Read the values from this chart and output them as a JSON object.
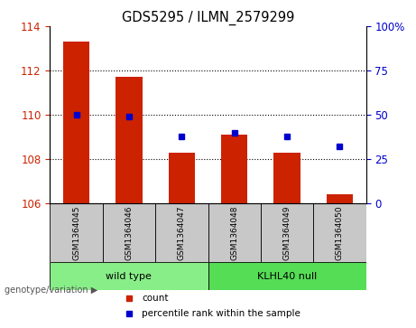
{
  "title": "GDS5295 / ILMN_2579299",
  "samples": [
    "GSM1364045",
    "GSM1364046",
    "GSM1364047",
    "GSM1364048",
    "GSM1364049",
    "GSM1364050"
  ],
  "counts": [
    113.3,
    111.7,
    108.3,
    109.1,
    108.3,
    106.4
  ],
  "percentile_ranks": [
    50,
    49,
    38,
    40,
    38,
    32
  ],
  "ylim_left": [
    106,
    114
  ],
  "yticks_left": [
    106,
    108,
    110,
    112,
    114
  ],
  "ylim_right": [
    0,
    100
  ],
  "yticks_right": [
    0,
    25,
    50,
    75,
    100
  ],
  "ytick_labels_right": [
    "0",
    "25",
    "50",
    "75",
    "100%"
  ],
  "bar_color": "#CC2200",
  "dot_color": "#0000CC",
  "bar_bottom": 106,
  "groups": [
    {
      "label": "wild type",
      "indices": [
        0,
        1,
        2
      ],
      "color": "#88EE88"
    },
    {
      "label": "KLHL40 null",
      "indices": [
        3,
        4,
        5
      ],
      "color": "#55DD55"
    }
  ],
  "genotype_label": "genotype/variation",
  "legend_items": [
    {
      "color": "#CC2200",
      "label": "count"
    },
    {
      "color": "#0000CC",
      "label": "percentile rank within the sample"
    }
  ],
  "tick_color_left": "#CC2200",
  "tick_color_right": "#0000CC",
  "sample_box_color": "#C8C8C8",
  "dotted_grid_values": [
    108,
    110,
    112
  ]
}
